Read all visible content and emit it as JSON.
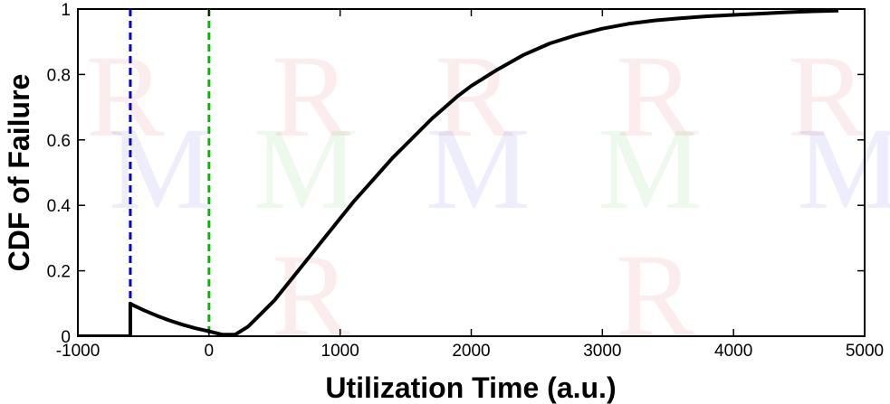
{
  "chart_data": {
    "type": "line",
    "title": "",
    "xlabel": "Utilization Time (a.u.)",
    "ylabel": "CDF of Failure",
    "xlim": [
      -1000,
      5000
    ],
    "ylim": [
      0,
      1
    ],
    "xticks": [
      -1000,
      0,
      1000,
      2000,
      3000,
      4000,
      5000
    ],
    "yticks": [
      0,
      0.2,
      0.4,
      0.6,
      0.8,
      1
    ],
    "grid": false,
    "legend": "none",
    "series": [
      {
        "color": "#000000",
        "x": [
          -1000,
          -600,
          -600,
          -580,
          -500,
          -400,
          -300,
          -200,
          -100,
          0,
          100,
          200,
          300,
          400,
          500,
          600,
          700,
          800,
          900,
          1000,
          1100,
          1200,
          1300,
          1400,
          1500,
          1600,
          1700,
          1800,
          1900,
          2000,
          2200,
          2400,
          2600,
          2800,
          3000,
          3200,
          3400,
          3600,
          3800,
          4000,
          4200,
          4400,
          4600,
          4800
        ],
        "y": [
          0,
          0,
          0.1,
          0.095,
          0.08,
          0.063,
          0.048,
          0.035,
          0.024,
          0.015,
          0.005,
          0.005,
          0.03,
          0.07,
          0.11,
          0.16,
          0.21,
          0.26,
          0.31,
          0.36,
          0.41,
          0.455,
          0.5,
          0.545,
          0.585,
          0.625,
          0.665,
          0.7,
          0.735,
          0.765,
          0.815,
          0.86,
          0.895,
          0.92,
          0.94,
          0.955,
          0.965,
          0.972,
          0.978,
          0.982,
          0.986,
          0.99,
          0.993,
          0.995
        ]
      }
    ],
    "reference_lines": [
      {
        "x": -600,
        "color": "#0000cc",
        "style": "dashed"
      },
      {
        "x": 0,
        "color": "#00bb00",
        "style": "dashed"
      }
    ]
  }
}
